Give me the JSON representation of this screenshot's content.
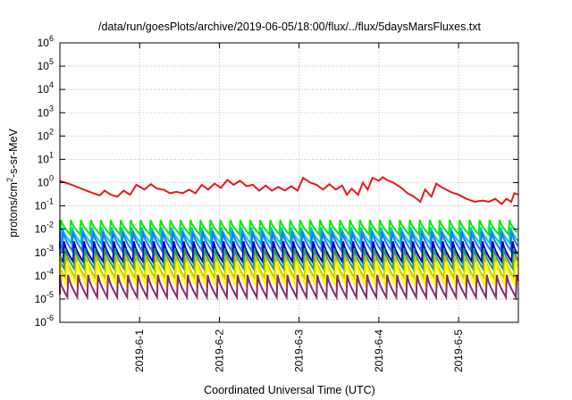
{
  "chart_data": {
    "type": "line",
    "title": "/data/run/goesPlots/archive/2019-06-05/18:00/flux/../flux/5daysMarsFluxes.txt",
    "xlabel": "Coordinated Universal Time (UTC)",
    "ylabel": {
      "base": "protons/cm",
      "sup": "2",
      "rest": "-s-sr-MeV"
    },
    "y_scale": "log",
    "ylim": [
      1e-06,
      1000000.0
    ],
    "xlim": [
      0,
      5.75
    ],
    "x_ticks": [
      {
        "x": 1,
        "label": "2019-6-1"
      },
      {
        "x": 2,
        "label": "2019-6-2"
      },
      {
        "x": 3,
        "label": "2019-6-3"
      },
      {
        "x": 4,
        "label": "2019-6-4"
      },
      {
        "x": 5,
        "label": "2019-6-5"
      }
    ],
    "y_ticks": [
      {
        "exp": -6,
        "label": "10",
        "sup": "-6"
      },
      {
        "exp": -5,
        "label": "10",
        "sup": "-5"
      },
      {
        "exp": -4,
        "label": "10",
        "sup": "-4"
      },
      {
        "exp": -3,
        "label": "10",
        "sup": "-3"
      },
      {
        "exp": -2,
        "label": "10",
        "sup": "-2"
      },
      {
        "exp": -1,
        "label": "10",
        "sup": "-1"
      },
      {
        "exp": 0,
        "label": "10",
        "sup": "0"
      },
      {
        "exp": 1,
        "label": "10",
        "sup": "1"
      },
      {
        "exp": 2,
        "label": "10",
        "sup": "2"
      },
      {
        "exp": 3,
        "label": "10",
        "sup": "3"
      },
      {
        "exp": 4,
        "label": "10",
        "sup": "4"
      },
      {
        "exp": 5,
        "label": "10",
        "sup": "5"
      },
      {
        "exp": 6,
        "label": "10",
        "sup": "6"
      }
    ],
    "grid": true,
    "legend": "none",
    "series": [
      {
        "color": "#e41a1c",
        "values": [
          [
            0.0,
            1.2
          ],
          [
            0.15,
            0.8
          ],
          [
            0.3,
            0.5
          ],
          [
            0.42,
            0.35
          ],
          [
            0.5,
            0.28
          ],
          [
            0.56,
            0.45
          ],
          [
            0.64,
            0.3
          ],
          [
            0.72,
            0.25
          ],
          [
            0.8,
            0.45
          ],
          [
            0.88,
            0.3
          ],
          [
            0.96,
            0.8
          ],
          [
            1.06,
            0.5
          ],
          [
            1.14,
            0.85
          ],
          [
            1.22,
            0.55
          ],
          [
            1.3,
            0.5
          ],
          [
            1.38,
            0.35
          ],
          [
            1.46,
            0.4
          ],
          [
            1.54,
            0.35
          ],
          [
            1.62,
            0.5
          ],
          [
            1.7,
            0.35
          ],
          [
            1.78,
            0.8
          ],
          [
            1.86,
            0.5
          ],
          [
            1.94,
            0.9
          ],
          [
            2.02,
            0.6
          ],
          [
            2.1,
            1.3
          ],
          [
            2.18,
            0.8
          ],
          [
            2.26,
            1.2
          ],
          [
            2.34,
            0.7
          ],
          [
            2.42,
            0.8
          ],
          [
            2.5,
            0.45
          ],
          [
            2.58,
            0.75
          ],
          [
            2.66,
            0.45
          ],
          [
            2.74,
            0.65
          ],
          [
            2.82,
            0.45
          ],
          [
            2.9,
            0.7
          ],
          [
            2.98,
            0.45
          ],
          [
            3.05,
            1.6
          ],
          [
            3.14,
            1.0
          ],
          [
            3.22,
            0.8
          ],
          [
            3.3,
            0.5
          ],
          [
            3.38,
            0.85
          ],
          [
            3.46,
            0.5
          ],
          [
            3.54,
            0.75
          ],
          [
            3.6,
            0.3
          ],
          [
            3.66,
            0.55
          ],
          [
            3.74,
            0.3
          ],
          [
            3.8,
            1.0
          ],
          [
            3.86,
            0.5
          ],
          [
            3.92,
            1.6
          ],
          [
            4.0,
            1.2
          ],
          [
            4.05,
            1.7
          ],
          [
            4.1,
            1.3
          ],
          [
            4.18,
            1.0
          ],
          [
            4.28,
            0.6
          ],
          [
            4.36,
            0.35
          ],
          [
            4.44,
            0.25
          ],
          [
            4.52,
            0.15
          ],
          [
            4.58,
            0.5
          ],
          [
            4.66,
            0.25
          ],
          [
            4.72,
            0.9
          ],
          [
            4.8,
            0.6
          ],
          [
            4.9,
            0.4
          ],
          [
            5.0,
            0.3
          ],
          [
            5.1,
            0.2
          ],
          [
            5.2,
            0.15
          ],
          [
            5.3,
            0.17
          ],
          [
            5.38,
            0.15
          ],
          [
            5.46,
            0.2
          ],
          [
            5.54,
            0.12
          ],
          [
            5.6,
            0.2
          ],
          [
            5.66,
            0.15
          ],
          [
            5.7,
            0.35
          ],
          [
            5.75,
            0.3
          ]
        ]
      },
      {
        "color": "#00ee00",
        "min": 0.006,
        "max": 0.025
      },
      {
        "color": "#00c8c8",
        "min": 0.0025,
        "max": 0.012
      },
      {
        "color": "#1e78ff",
        "min": 0.0012,
        "max": 0.008
      },
      {
        "color": "#0000c8",
        "min": 0.0004,
        "max": 0.003
      },
      {
        "color": "#2a9d5a",
        "min": 0.0002,
        "max": 0.0015
      },
      {
        "color": "#c8c800",
        "min": 8e-05,
        "max": 0.0007
      },
      {
        "color": "#ffff00",
        "min": 4e-05,
        "max": 0.0004
      },
      {
        "color": "#8b2a6e",
        "min": 1.2e-05,
        "max": 0.00011
      }
    ],
    "periodic_series_period": 0.125
  }
}
